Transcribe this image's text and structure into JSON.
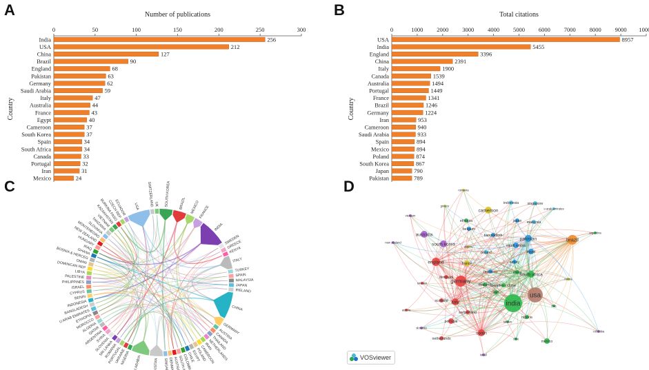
{
  "panels": {
    "a": "A",
    "b": "B",
    "c": "C",
    "d": "D"
  },
  "colors": {
    "bar": "#f07f2a",
    "bar_edge": "#b85a17",
    "axis": "#555555"
  },
  "chart_data": [
    {
      "type": "bar",
      "orientation": "horizontal",
      "title": "Number of publications",
      "ylabel": "Country",
      "xlim": [
        0,
        300
      ],
      "xticks": [
        0,
        50,
        100,
        150,
        200,
        250,
        300
      ],
      "categories": [
        "India",
        "USA",
        "China",
        "Brazil",
        "England",
        "Pakistan",
        "Germany",
        "Saudi Arabia",
        "Italy",
        "Australia",
        "France",
        "Egypt",
        "Cameroon",
        "South Korea",
        "Spain",
        "South Africa",
        "Canada",
        "Portugal",
        "Iran",
        "Mexico"
      ],
      "values": [
        256,
        212,
        127,
        90,
        68,
        63,
        62,
        59,
        47,
        44,
        43,
        40,
        37,
        37,
        34,
        34,
        33,
        32,
        31,
        24
      ]
    },
    {
      "type": "bar",
      "orientation": "horizontal",
      "title": "Total citations",
      "ylabel": "Country",
      "xlim": [
        0,
        10000
      ],
      "xticks": [
        0,
        1000,
        2000,
        3000,
        4000,
        5000,
        6000,
        7000,
        8000,
        9000,
        10000
      ],
      "categories": [
        "USA",
        "India",
        "England",
        "China",
        "Italy",
        "Canada",
        "Australia",
        "Portugal",
        "France",
        "Brazil",
        "Germany",
        "Iran",
        "Cameroon",
        "Saudi Arabia",
        "Spain",
        "Mexico",
        "Poland",
        "South Korea",
        "Japan",
        "Pakistan"
      ],
      "values": [
        8957,
        5455,
        3396,
        2391,
        1900,
        1539,
        1494,
        1449,
        1341,
        1246,
        1224,
        953,
        940,
        933,
        894,
        894,
        874,
        867,
        790,
        789
      ]
    }
  ],
  "chord": {
    "labels": [
      "USA",
      "SWITZERLAND",
      "UK",
      "SOUTH KOREA",
      "BRAZIL",
      "MEXICO",
      "FRANCE",
      "INDIA",
      "SWEDEN",
      "GREECE",
      "KENYA",
      "ITALY",
      "TURKEY",
      "SPAIN",
      "MALAYSIA",
      "JAPAN",
      "IRELAND",
      "CHINA",
      "GERMANY",
      "AUSTRIA",
      "CANADA",
      "THAILAND",
      "NETHERLANDS",
      "IRAN",
      "CAMEROON",
      "POLAND",
      "EGYPT",
      "CHILE",
      "COLOMBIA",
      "SOUTH AFRICA",
      "AUSTRALIA",
      "DENMARK",
      "SINGAPORE",
      "PAKISTAN",
      "SAUDI ARABIA",
      "NIGERIA",
      "UKRAINE",
      "PORTUGAL",
      "ROMANIA",
      "SRI LANKA",
      "SLOVENIA",
      "SYRIA",
      "ARGENTINA",
      "QATAR",
      "ALGERIA",
      "MOROCCO",
      "ETHIOPIA",
      "U ARAB EMIRATES",
      "BANGLADESH",
      "INDONESIA",
      "BENIN",
      "CYPRUS",
      "ISRAEL",
      "PHILIPPINES",
      "PALESTINE",
      "LIBYA",
      "DOMINICAN REP",
      "OMAN",
      "BOSNIA & HERCEG",
      "GHANA",
      "IRAQ",
      "HUNGARY",
      "NEW ZEALAND",
      "MONTENEGRO",
      "SLOVAKIA",
      "TANZANIA",
      "VIETNAM",
      "KAZAKHSTAN",
      "BURKINA FASO",
      "CZECH REP",
      "ECUADOR"
    ]
  },
  "network": {
    "nodes": [
      {
        "label": "india"
      },
      {
        "label": "usa"
      },
      {
        "label": "brazil"
      },
      {
        "label": "pakistan"
      },
      {
        "label": "saudi arabia"
      },
      {
        "label": "egypt"
      },
      {
        "label": "china"
      },
      {
        "label": "england"
      },
      {
        "label": "germany"
      },
      {
        "label": "italy"
      },
      {
        "label": "australia"
      },
      {
        "label": "south korea"
      },
      {
        "label": "france"
      },
      {
        "label": "cameroon"
      },
      {
        "label": "japan"
      },
      {
        "label": "malaysia"
      },
      {
        "label": "indonesia"
      },
      {
        "label": "singapore"
      },
      {
        "label": "u arab emirates"
      },
      {
        "label": "romania"
      },
      {
        "label": "greece"
      },
      {
        "label": "ethiopia"
      },
      {
        "label": "belgium"
      },
      {
        "label": "bangladesh"
      },
      {
        "label": "algeria"
      },
      {
        "label": "poland"
      },
      {
        "label": "turkey"
      },
      {
        "label": "morocco"
      },
      {
        "label": "south africa"
      },
      {
        "label": "denmark"
      },
      {
        "label": "thailand"
      },
      {
        "label": "peoples r china"
      },
      {
        "label": "iran"
      },
      {
        "label": "sweden"
      },
      {
        "label": "scotland"
      },
      {
        "label": "switzerland"
      },
      {
        "label": "portugal"
      },
      {
        "label": "austria"
      },
      {
        "label": "spain"
      },
      {
        "label": "netherlands"
      },
      {
        "label": "slovenia"
      },
      {
        "label": "israel"
      },
      {
        "label": "taiwan"
      },
      {
        "label": "nigeria"
      },
      {
        "label": "chile"
      },
      {
        "label": "mexico"
      },
      {
        "label": "colombia"
      },
      {
        "label": "iraq"
      },
      {
        "label": "russia"
      },
      {
        "label": "argentina"
      },
      {
        "label": "new zealand"
      },
      {
        "label": "vietnam"
      }
    ],
    "brand": "VOSviewer"
  }
}
